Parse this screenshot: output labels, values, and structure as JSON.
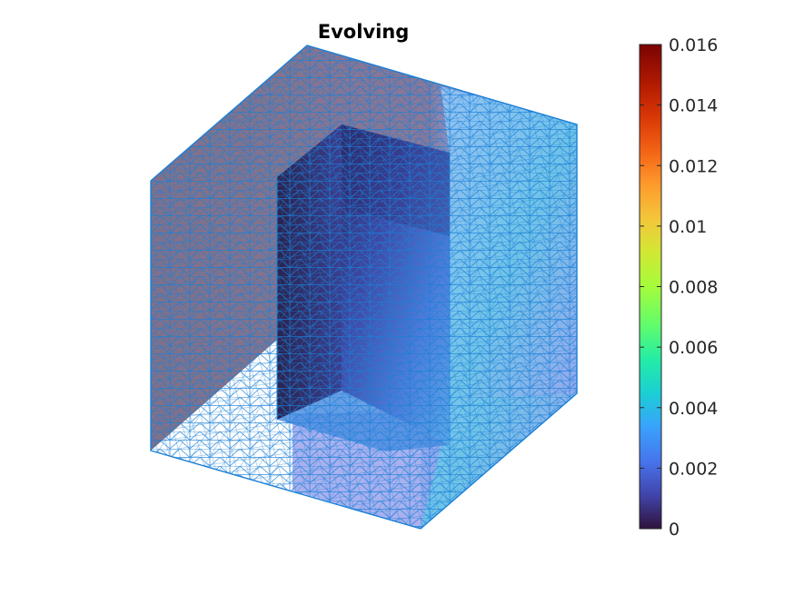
{
  "chart_data": {
    "type": "heatmap",
    "title": "Evolving",
    "colormap": "turbo",
    "colorbar": {
      "position": "right",
      "range": [
        0,
        0.016
      ],
      "ticks": [
        0,
        0.002,
        0.004,
        0.006,
        0.008,
        0.01,
        0.012,
        0.014,
        0.016
      ],
      "tick_labels": [
        "0",
        "0.002",
        "0.004",
        "0.006",
        "0.008",
        "0.01",
        "0.012",
        "0.014",
        "0.016"
      ]
    },
    "mesh": {
      "shape": "cube with rectangular cut-out",
      "edge_color": "#1a7fd6",
      "face_value_range_shown": [
        0,
        0.0045
      ]
    },
    "colors": {
      "face_dark": "#837087",
      "face_light": "#88bff4",
      "inner_dark": "#2c2760",
      "inner_mid": "#4b6bd3",
      "edges": "#1a7fd6"
    }
  }
}
